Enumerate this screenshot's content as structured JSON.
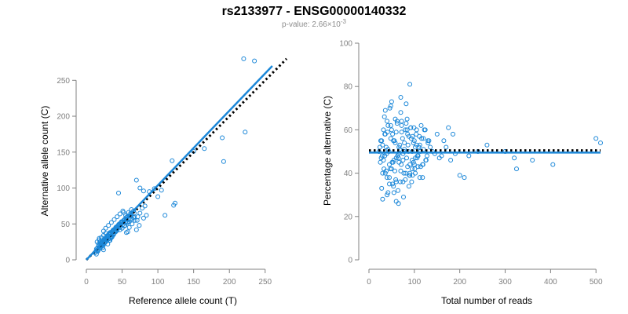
{
  "title": "rs2133977 - ENSG00000140332",
  "subtitle": {
    "prefix": "p-value: 2.66×10",
    "exponent": "-3"
  },
  "colors": {
    "points": "#1b87d8",
    "fit": "#1b87d8",
    "reference": "#000000",
    "axis": "#808080"
  },
  "chart_data": [
    {
      "type": "scatter",
      "xlabel": "Reference allele count (T)",
      "ylabel": "Alternative allele count (C)",
      "xlim": [
        0,
        270
      ],
      "ylim": [
        0,
        270
      ],
      "xticks": [
        0,
        50,
        100,
        150,
        200,
        250
      ],
      "yticks": [
        0,
        50,
        100,
        150,
        200,
        250
      ],
      "fit_line": {
        "style": "solid",
        "points": [
          [
            0,
            0
          ],
          [
            260,
            270
          ]
        ]
      },
      "reference_line": {
        "style": "dotted",
        "points": [
          [
            0,
            0
          ],
          [
            280,
            280
          ]
        ]
      },
      "series": [
        {
          "x": [
            14,
            16,
            18,
            20,
            22,
            24,
            12,
            15,
            17,
            19,
            21,
            23,
            25,
            27,
            18,
            20,
            22,
            24,
            26,
            28,
            13,
            16,
            19,
            22,
            25,
            28,
            30,
            32,
            34,
            36,
            14,
            17,
            21,
            24,
            27,
            30,
            33,
            36,
            38,
            40,
            20,
            23,
            26,
            29,
            32,
            35,
            38,
            41,
            44,
            47,
            22,
            26,
            30,
            34,
            38,
            42,
            46,
            50,
            54,
            58,
            25,
            29,
            33,
            37,
            41,
            45,
            49,
            53,
            57,
            61,
            28,
            32,
            36,
            40,
            44,
            48,
            52,
            56,
            60,
            64,
            30,
            34,
            38,
            42,
            46,
            50,
            54,
            58,
            62,
            66,
            24,
            27,
            31,
            35,
            39,
            43,
            47,
            51,
            55,
            59,
            63,
            67,
            71,
            75,
            60,
            64,
            68,
            72,
            78,
            82,
            56,
            70,
            74,
            80,
            45,
            52,
            58,
            15,
            18,
            21,
            24,
            27,
            30,
            33,
            20,
            23,
            26,
            29,
            32,
            35,
            38,
            41,
            18,
            21,
            24,
            28,
            31,
            34,
            37,
            40,
            43,
            46,
            70,
            75,
            80,
            84,
            88,
            95,
            100,
            105,
            110,
            120,
            122,
            124,
            150,
            165,
            190,
            192,
            220,
            222,
            235,
            22,
            26,
            30,
            34,
            38,
            42,
            46,
            50,
            54,
            58,
            62,
            66,
            16,
            19,
            23,
            27,
            31,
            35,
            39,
            43,
            47,
            51,
            55,
            59,
            63,
            67
          ],
          "y": [
            8,
            12,
            15,
            18,
            20,
            14,
            10,
            16,
            22,
            25,
            19,
            17,
            23,
            28,
            30,
            26,
            24,
            21,
            27,
            31,
            11,
            13,
            18,
            20,
            24,
            29,
            33,
            27,
            30,
            35,
            15,
            19,
            23,
            26,
            30,
            34,
            38,
            32,
            36,
            40,
            21,
            24,
            28,
            33,
            37,
            31,
            35,
            40,
            45,
            42,
            26,
            30,
            34,
            38,
            42,
            46,
            50,
            44,
            48,
            53,
            29,
            33,
            37,
            41,
            45,
            49,
            53,
            47,
            51,
            56,
            30,
            35,
            39,
            43,
            47,
            51,
            55,
            59,
            53,
            57,
            33,
            37,
            41,
            45,
            49,
            53,
            57,
            61,
            65,
            59,
            40,
            44,
            48,
            52,
            56,
            60,
            64,
            68,
            62,
            66,
            70,
            60,
            55,
            65,
            45,
            50,
            55,
            60,
            72,
            75,
            38,
            42,
            48,
            58,
            93,
            66,
            39,
            25,
            28,
            31,
            34,
            37,
            22,
            27,
            18,
            21,
            24,
            27,
            30,
            33,
            36,
            39,
            20,
            23,
            26,
            29,
            32,
            35,
            38,
            41,
            44,
            47,
            111,
            100,
            96,
            62,
            95,
            99,
            88,
            97,
            62,
            138,
            76,
            79,
            151,
            155,
            170,
            137,
            280,
            178,
            277,
            24,
            28,
            32,
            36,
            40,
            44,
            48,
            52,
            56,
            60,
            64,
            68,
            14,
            17,
            21,
            25,
            29,
            33,
            37,
            41,
            45,
            49,
            53,
            57,
            61,
            65
          ]
        }
      ]
    },
    {
      "type": "scatter",
      "xlabel": "Total number of reads",
      "ylabel": "Percentage alternative (C)",
      "xlim": [
        0,
        510
      ],
      "ylim": [
        0,
        100
      ],
      "xticks": [
        0,
        100,
        200,
        300,
        400,
        500
      ],
      "yticks": [
        0,
        20,
        40,
        60,
        80,
        100
      ],
      "fit_line": {
        "style": "solid",
        "y": 49.5
      },
      "reference_line": {
        "style": "dotted",
        "y": 50.5
      },
      "series": [
        {
          "x": [
            22,
            25,
            28,
            30,
            32,
            35,
            38,
            40,
            42,
            45,
            48,
            50,
            52,
            55,
            58,
            60,
            62,
            65,
            68,
            70,
            72,
            75,
            78,
            80,
            82,
            85,
            88,
            90,
            92,
            95,
            98,
            100,
            102,
            105,
            108,
            110,
            112,
            115,
            118,
            120,
            24,
            27,
            30,
            33,
            36,
            39,
            42,
            45,
            48,
            51,
            54,
            57,
            60,
            63,
            66,
            69,
            72,
            75,
            78,
            81,
            84,
            87,
            90,
            93,
            96,
            99,
            102,
            105,
            108,
            111,
            26,
            29,
            32,
            35,
            38,
            41,
            44,
            47,
            50,
            53,
            56,
            59,
            62,
            65,
            68,
            71,
            74,
            77,
            80,
            83,
            86,
            89,
            92,
            95,
            98,
            101,
            104,
            107,
            110,
            113,
            116,
            119,
            122,
            125,
            128,
            130,
            135,
            140,
            145,
            150,
            155,
            160,
            165,
            170,
            175,
            180,
            185,
            190,
            200,
            210,
            220,
            240,
            260,
            300,
            320,
            325,
            360,
            405,
            500,
            510,
            28,
            34,
            40,
            46,
            52,
            58,
            64,
            70,
            76,
            82,
            88,
            94,
            100,
            106,
            112,
            118,
            124,
            130,
            30,
            36,
            42,
            48,
            54,
            60,
            66,
            72,
            78,
            84,
            90,
            96,
            102,
            108,
            114,
            120,
            126,
            132,
            70,
            90,
            50,
            75,
            65,
            45,
            36,
            60,
            55,
            40,
            85,
            95
          ],
          "y": [
            50,
            45,
            55,
            40,
            60,
            48,
            52,
            38,
            62,
            44,
            56,
            42,
            58,
            46,
            54,
            36,
            64,
            47,
            53,
            41,
            59,
            49,
            51,
            37,
            63,
            43,
            57,
            39,
            61,
            50,
            45,
            55,
            40,
            60,
            48,
            52,
            38,
            62,
            44,
            56,
            52,
            47,
            53,
            42,
            58,
            49,
            51,
            38,
            62,
            45,
            55,
            41,
            59,
            48,
            52,
            36,
            64,
            46,
            54,
            40,
            60,
            50,
            44,
            56,
            39,
            61,
            47,
            53,
            43,
            57,
            55,
            48,
            46,
            58,
            41,
            59,
            50,
            42,
            60,
            45,
            55,
            37,
            63,
            49,
            51,
            44,
            56,
            40,
            60,
            47,
            53,
            39,
            61,
            46,
            54,
            42,
            58,
            48,
            52,
            50,
            56,
            44,
            60,
            46,
            48,
            54,
            52,
            50,
            49,
            58,
            47,
            48,
            55,
            52,
            61,
            46,
            58,
            49,
            39,
            38,
            48,
            50,
            53,
            50,
            47,
            42,
            46,
            44,
            56,
            54,
            33,
            66,
            30,
            70,
            35,
            65,
            32,
            68,
            29,
            72,
            34,
            36,
            44,
            47,
            53,
            38,
            60,
            55,
            28,
            69,
            31,
            71,
            34,
            27,
            45,
            62,
            50,
            65,
            40,
            57,
            52,
            48,
            43,
            51,
            46,
            55,
            75,
            81,
            73,
            36,
            26,
            35,
            40,
            47,
            31,
            64,
            58,
            42
          ]
        }
      ]
    }
  ]
}
